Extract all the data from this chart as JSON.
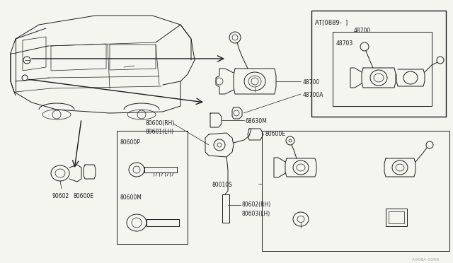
{
  "bg_color": "#f5f5f0",
  "line_color": "#1a1a1a",
  "fig_width": 6.4,
  "fig_height": 3.72,
  "dpi": 100,
  "watermark": "A998A 00R8",
  "inset_label": "AT[0889-  ]",
  "label_48700": "48700",
  "label_48700A": "48700A",
  "label_68630M": "68630M",
  "label_80600RH": "80600(RH)",
  "label_80601LH": "80601(LH)",
  "label_80600E": "80600E",
  "label_80600P": "80600P",
  "label_80600M": "80600M",
  "label_80010S": "80010S",
  "label_80602RH": "80602(RH)",
  "label_80603LH": "80603(LH)",
  "label_90602": "90602",
  "label_80600E_bl": "80600E",
  "label_48703": "48703",
  "fs": 5.5,
  "fs_small": 5.0,
  "lw": 0.7,
  "lw_thin": 0.5,
  "lw_thick": 1.0
}
